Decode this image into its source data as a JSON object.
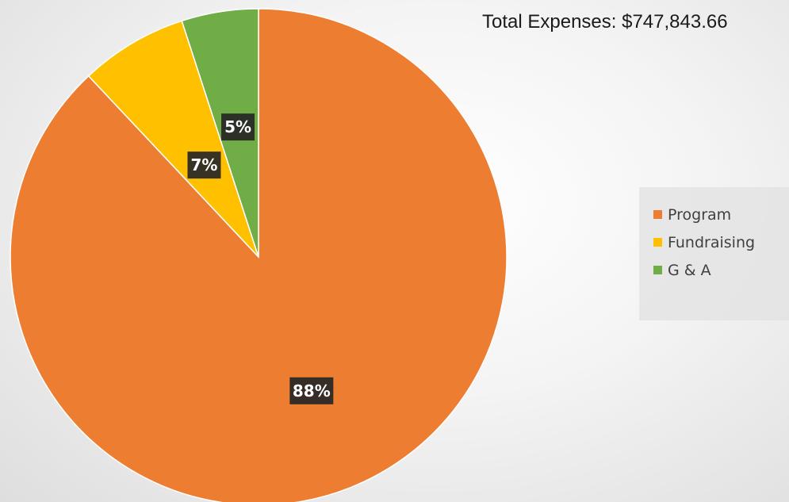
{
  "chart_data": {
    "type": "pie",
    "title": "",
    "annotation": "Total Expenses: $747,843.66",
    "slices": [
      {
        "name": "Program",
        "value": 88,
        "label": "88%",
        "color": "#ED7D31"
      },
      {
        "name": "Fundraising",
        "value": 7,
        "label": "7%",
        "color": "#FFC000"
      },
      {
        "name": "G & A",
        "value": 5,
        "label": "5%",
        "color": "#70AD47"
      }
    ],
    "start_angle_deg": 0,
    "direction": "clockwise",
    "legend_position": "right"
  }
}
